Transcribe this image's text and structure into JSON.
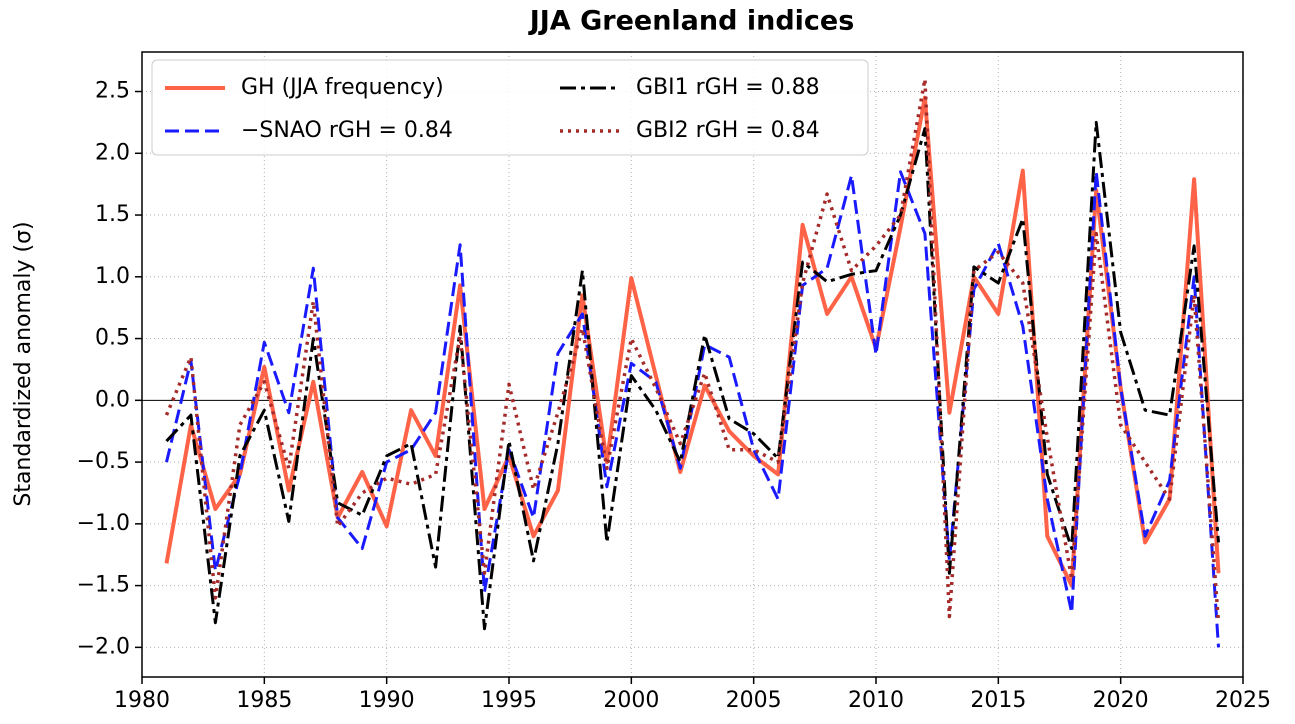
{
  "chart_data": {
    "type": "line",
    "title": "JJA Greenland indices",
    "y_label": "Standardized anomaly (σ)",
    "x": [
      1981,
      1982,
      1983,
      1984,
      1985,
      1986,
      1987,
      1988,
      1989,
      1990,
      1991,
      1992,
      1993,
      1994,
      1995,
      1996,
      1997,
      1998,
      1999,
      2000,
      2001,
      2002,
      2003,
      2004,
      2005,
      2006,
      2007,
      2008,
      2009,
      2010,
      2011,
      2012,
      2013,
      2014,
      2015,
      2016,
      2017,
      2018,
      2019,
      2020,
      2021,
      2022,
      2023,
      2024
    ],
    "series": [
      {
        "name": "GH (JJA frequency)",
        "color": "#ff6347",
        "linestyle": "solid",
        "values": [
          -1.32,
          -0.2,
          -0.88,
          -0.6,
          0.27,
          -0.73,
          0.15,
          -0.95,
          -0.58,
          -1.02,
          -0.08,
          -0.45,
          0.93,
          -0.88,
          -0.45,
          -1.1,
          -0.73,
          0.85,
          -0.5,
          0.99,
          0.2,
          -0.58,
          0.12,
          -0.25,
          -0.45,
          -0.6,
          1.42,
          0.7,
          1.0,
          0.42,
          1.4,
          2.45,
          -0.1,
          1.0,
          0.7,
          1.86,
          -1.1,
          -1.5,
          1.7,
          0.1,
          -1.15,
          -0.8,
          1.79,
          -1.4
        ]
      },
      {
        "name": "−SNAO rGH = 0.84",
        "color": "#1a1aff",
        "linestyle": "dashed",
        "values": [
          -0.5,
          0.32,
          -1.38,
          -0.6,
          0.47,
          -0.1,
          1.07,
          -0.95,
          -1.2,
          -0.5,
          -0.4,
          -0.1,
          1.26,
          -1.55,
          -0.4,
          -0.95,
          0.38,
          0.7,
          -0.7,
          0.3,
          0.15,
          -0.55,
          0.45,
          0.35,
          -0.4,
          -0.8,
          0.93,
          1.07,
          1.82,
          0.37,
          1.85,
          1.35,
          -1.3,
          0.9,
          1.27,
          0.6,
          -0.8,
          -1.72,
          1.85,
          0.1,
          -1.1,
          -0.65,
          1.0,
          -2.0
        ]
      },
      {
        "name": "GBI1 rGH = 0.88",
        "color": "#000000",
        "linestyle": "dashdot",
        "values": [
          -0.33,
          -0.12,
          -1.8,
          -0.45,
          -0.08,
          -0.98,
          0.5,
          -0.83,
          -0.93,
          -0.45,
          -0.35,
          -1.35,
          0.6,
          -1.85,
          -0.33,
          -1.3,
          -0.35,
          1.05,
          -1.15,
          0.2,
          -0.08,
          -0.5,
          0.53,
          -0.15,
          -0.27,
          -0.47,
          1.12,
          0.96,
          1.02,
          1.05,
          1.5,
          2.2,
          -1.4,
          1.08,
          0.95,
          1.47,
          -0.6,
          -1.2,
          2.25,
          0.55,
          -0.08,
          -0.12,
          1.25,
          -1.15
        ]
      },
      {
        "name": "GBI2 rGH = 0.84",
        "color": "#a52a2a",
        "linestyle": "dotted",
        "values": [
          -0.12,
          0.35,
          -1.6,
          -0.2,
          0.15,
          -0.55,
          0.8,
          -1.02,
          -0.75,
          -0.63,
          -0.68,
          -0.6,
          0.52,
          -1.4,
          0.13,
          -0.72,
          -0.1,
          0.58,
          -0.55,
          0.5,
          0.1,
          -0.35,
          0.22,
          -0.4,
          -0.4,
          -0.5,
          0.95,
          1.67,
          1.05,
          1.25,
          1.5,
          2.6,
          -1.75,
          1.05,
          1.2,
          0.95,
          -0.3,
          -1.45,
          1.35,
          -0.2,
          -0.5,
          -0.8,
          0.85,
          -1.8
        ]
      }
    ],
    "xlim": [
      1980,
      2025
    ],
    "xticks": [
      1980,
      1985,
      1990,
      1995,
      2000,
      2005,
      2010,
      2015,
      2020,
      2025
    ],
    "ylim": [
      -2.24,
      2.82
    ],
    "yticks": [
      {
        "value": -2,
        "label": "−2.0"
      },
      {
        "value": -1.5,
        "label": "−1.5"
      },
      {
        "value": -1,
        "label": "−1.0"
      },
      {
        "value": -0.5,
        "label": "−0.5"
      },
      {
        "value": 0,
        "label": "0.0"
      },
      {
        "value": 0.5,
        "label": "0.5"
      },
      {
        "value": 1,
        "label": "1.0"
      },
      {
        "value": 1.5,
        "label": "1.5"
      },
      {
        "value": 2,
        "label": "2.0"
      },
      {
        "value": 2.5,
        "label": "2.5"
      }
    ],
    "grid": true,
    "zero_line": true,
    "legend": "upper left"
  }
}
